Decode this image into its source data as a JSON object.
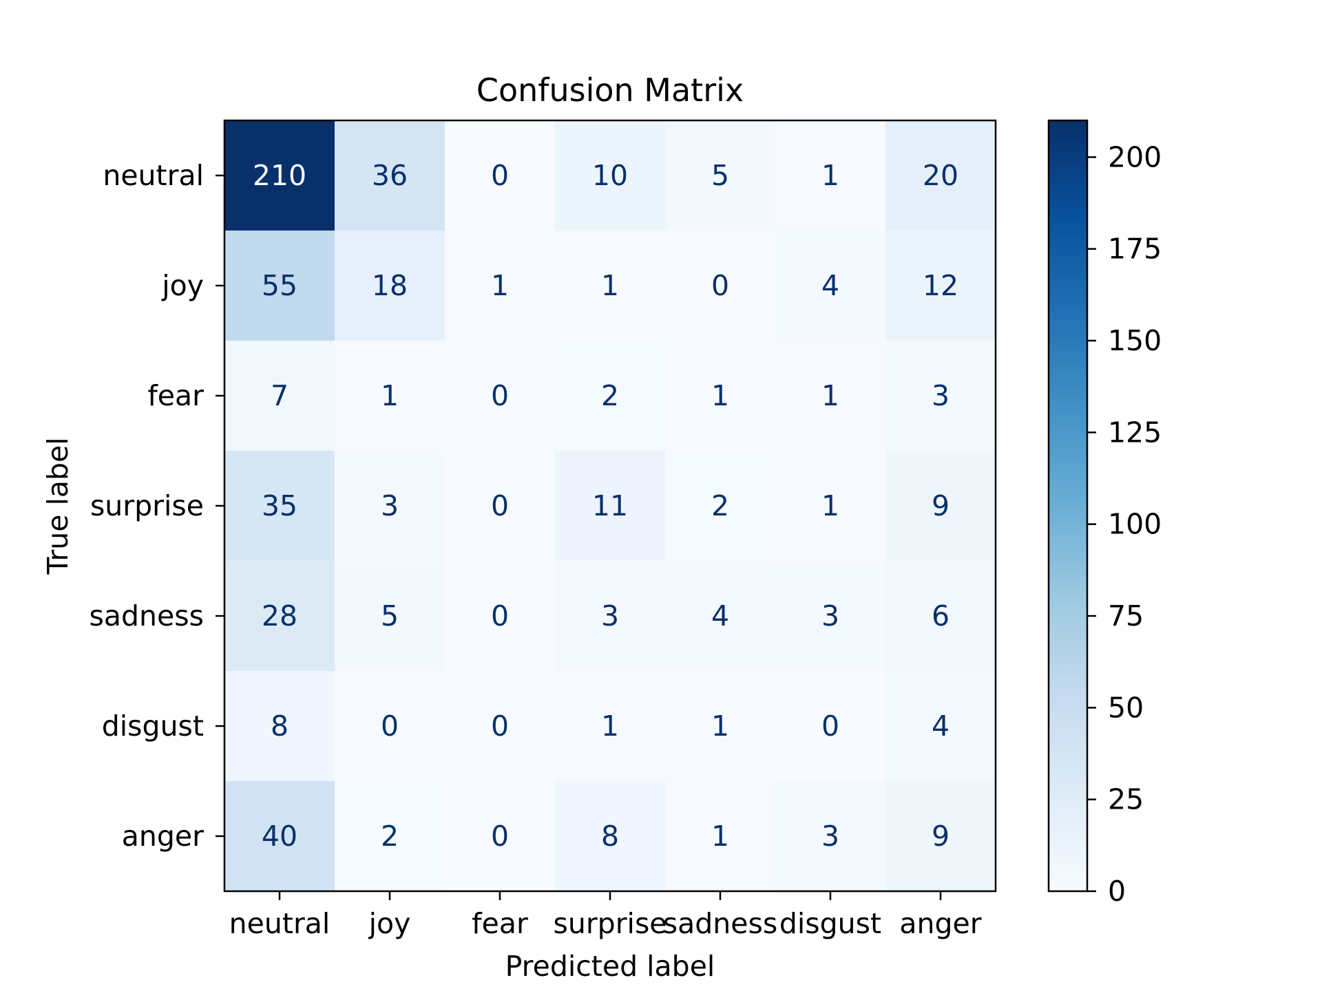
{
  "chart_data": {
    "type": "heatmap",
    "title": "Confusion Matrix",
    "xlabel": "Predicted label",
    "ylabel": "True label",
    "x_categories": [
      "neutral",
      "joy",
      "fear",
      "surprise",
      "sadness",
      "disgust",
      "anger"
    ],
    "y_categories": [
      "neutral",
      "joy",
      "fear",
      "surprise",
      "sadness",
      "disgust",
      "anger"
    ],
    "values": [
      [
        210,
        36,
        0,
        10,
        5,
        1,
        20
      ],
      [
        55,
        18,
        1,
        1,
        0,
        4,
        12
      ],
      [
        7,
        1,
        0,
        2,
        1,
        1,
        3
      ],
      [
        35,
        3,
        0,
        11,
        2,
        1,
        9
      ],
      [
        28,
        5,
        0,
        3,
        4,
        3,
        6
      ],
      [
        8,
        0,
        0,
        1,
        1,
        0,
        4
      ],
      [
        40,
        2,
        0,
        8,
        1,
        3,
        9
      ]
    ],
    "colormap": "Blues",
    "colorbar": {
      "min": 0,
      "max": 210,
      "ticks": [
        0,
        25,
        50,
        75,
        100,
        125,
        150,
        175,
        200
      ]
    },
    "grid": false
  }
}
